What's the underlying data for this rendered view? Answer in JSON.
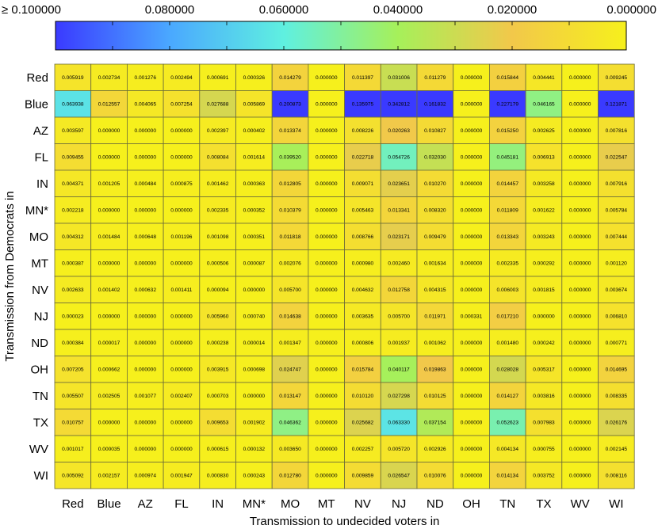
{
  "chart_data": {
    "type": "heatmap",
    "title": "",
    "xlabel": "Transmission to undecided voters in",
    "ylabel": "Transmission from Democrats in",
    "x_categories": [
      "Red",
      "Blue",
      "AZ",
      "FL",
      "IN",
      "MN*",
      "MO",
      "MT",
      "NV",
      "NJ",
      "ND",
      "OH",
      "TN",
      "TX",
      "WV",
      "WI"
    ],
    "y_categories": [
      "Red",
      "Blue",
      "AZ",
      "FL",
      "IN",
      "MN*",
      "MO",
      "MT",
      "NV",
      "NJ",
      "ND",
      "OH",
      "TN",
      "TX",
      "WV",
      "WI"
    ],
    "values": [
      [
        "0.005919",
        "0.002734",
        "0.001276",
        "0.002494",
        "0.000691",
        "0.000326",
        "0.014279",
        "0.000000",
        "0.011397",
        "0.031006",
        "0.011279",
        "0.000000",
        "0.015844",
        "0.004441",
        "0.000000",
        "0.009245"
      ],
      [
        "0.063938",
        "0.012557",
        "0.004065",
        "0.007254",
        "0.027688",
        "0.005869",
        "0.200873",
        "0.000000",
        "0.135975",
        "0.342812",
        "0.161832",
        "0.000000",
        "0.227179",
        "0.046165",
        "0.000000",
        "0.121871"
      ],
      [
        "0.003597",
        "0.000000",
        "0.000000",
        "0.000000",
        "0.002397",
        "0.000402",
        "0.013374",
        "0.000000",
        "0.008226",
        "0.020263",
        "0.010827",
        "0.000000",
        "0.015250",
        "0.002625",
        "0.000000",
        "0.007816"
      ],
      [
        "0.009455",
        "0.000000",
        "0.000000",
        "0.000000",
        "0.008084",
        "0.001614",
        "0.039520",
        "0.000000",
        "0.022718",
        "0.054726",
        "0.032030",
        "0.000000",
        "0.045181",
        "0.006913",
        "0.000000",
        "0.022547"
      ],
      [
        "0.004371",
        "0.001205",
        "0.000484",
        "0.000875",
        "0.001462",
        "0.000363",
        "0.012805",
        "0.000000",
        "0.009071",
        "0.023651",
        "0.010270",
        "0.000000",
        "0.014457",
        "0.003258",
        "0.000000",
        "0.007916"
      ],
      [
        "0.002218",
        "0.000000",
        "0.000000",
        "0.000000",
        "0.002335",
        "0.000352",
        "0.010379",
        "0.000000",
        "0.005463",
        "0.013341",
        "0.008320",
        "0.000000",
        "0.011809",
        "0.001622",
        "0.000000",
        "0.005784"
      ],
      [
        "0.004312",
        "0.001484",
        "0.000648",
        "0.001196",
        "0.001098",
        "0.000351",
        "0.011818",
        "0.000000",
        "0.008766",
        "0.023171",
        "0.009479",
        "0.000000",
        "0.013343",
        "0.003243",
        "0.000000",
        "0.007444"
      ],
      [
        "0.000387",
        "0.000000",
        "0.000000",
        "0.000000",
        "0.000506",
        "0.000087",
        "0.002076",
        "0.000000",
        "0.000980",
        "0.002460",
        "0.001634",
        "0.000000",
        "0.002335",
        "0.000292",
        "0.000000",
        "0.001120"
      ],
      [
        "0.002633",
        "0.001402",
        "0.000632",
        "0.001411",
        "0.000094",
        "0.000000",
        "0.005700",
        "0.000000",
        "0.004632",
        "0.012758",
        "0.004315",
        "0.000000",
        "0.006003",
        "0.001815",
        "0.000000",
        "0.003674"
      ],
      [
        "0.000023",
        "0.000000",
        "0.000000",
        "0.000000",
        "0.005960",
        "0.000740",
        "0.014638",
        "0.000000",
        "0.003635",
        "0.005700",
        "0.011971",
        "0.000331",
        "0.017210",
        "0.000000",
        "0.000000",
        "0.006810"
      ],
      [
        "0.000384",
        "0.000017",
        "0.000000",
        "0.000000",
        "0.000238",
        "0.000014",
        "0.001347",
        "0.000000",
        "0.000806",
        "0.001937",
        "0.001062",
        "0.000000",
        "0.001480",
        "0.000242",
        "0.000000",
        "0.000771"
      ],
      [
        "0.007205",
        "0.000662",
        "0.000000",
        "0.000000",
        "0.003915",
        "0.000698",
        "0.024747",
        "0.000000",
        "0.015784",
        "0.040117",
        "0.019863",
        "0.000000",
        "0.028028",
        "0.005317",
        "0.000000",
        "0.014695"
      ],
      [
        "0.005507",
        "0.002505",
        "0.001077",
        "0.002407",
        "0.000703",
        "0.000000",
        "0.013147",
        "0.000000",
        "0.010120",
        "0.027298",
        "0.010125",
        "0.000000",
        "0.014127",
        "0.003816",
        "0.000000",
        "0.008335"
      ],
      [
        "0.010757",
        "0.000000",
        "0.000000",
        "0.000000",
        "0.009653",
        "0.001902",
        "0.046362",
        "0.000000",
        "0.025682",
        "0.063330",
        "0.037154",
        "0.000000",
        "0.052623",
        "0.007983",
        "0.000000",
        "0.026176"
      ],
      [
        "0.001017",
        "0.000035",
        "0.000000",
        "0.000000",
        "0.000615",
        "0.000132",
        "0.003650",
        "0.000000",
        "0.002257",
        "0.005720",
        "0.002926",
        "0.000000",
        "0.004134",
        "0.000755",
        "0.000000",
        "0.002145"
      ],
      [
        "0.005092",
        "0.002157",
        "0.000974",
        "0.001947",
        "0.000830",
        "0.000243",
        "0.012780",
        "0.000000",
        "0.009859",
        "0.026547",
        "0.010076",
        "0.000000",
        "0.014134",
        "0.003752",
        "0.000000",
        "0.008116"
      ]
    ],
    "colorbar": {
      "range": [
        0.0,
        0.1
      ],
      "reversed": true,
      "ticks": [
        0.1,
        0.08,
        0.06,
        0.04,
        0.02,
        0.0
      ],
      "tick_labels": [
        "≥ 0.100000",
        "0.080000",
        "0.060000",
        "0.040000",
        "0.020000",
        "0.000000"
      ],
      "colors": [
        "#3a3aff",
        "#4aa8ff",
        "#5ff0e0",
        "#a6f05a",
        "#f2c84a",
        "#f6f01c"
      ],
      "color_stops": [
        0.0,
        0.2,
        0.4,
        0.6,
        0.8,
        1.0
      ]
    },
    "grid": true,
    "legend": "colorbar-top"
  }
}
